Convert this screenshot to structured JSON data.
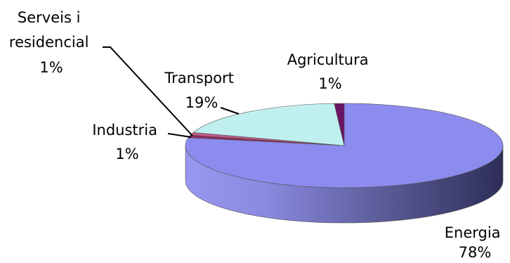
{
  "chart_data": {
    "type": "pie",
    "style": "3d",
    "title": "",
    "legend": "none",
    "slices": [
      {
        "name": "Energia",
        "value": 78,
        "label": "78%",
        "color": "#8c8cef"
      },
      {
        "name": "Serveis i residencial",
        "value": 1,
        "label": "1%",
        "color": "#8e2a5c"
      },
      {
        "name": "Industria",
        "value": 1,
        "label": "1%",
        "color": "#c85a8a"
      },
      {
        "name": "Transport",
        "value": 19,
        "label": "19%",
        "color": "#bff0ef"
      },
      {
        "name": "Agricultura",
        "value": 1,
        "label": "1%",
        "color": "#6a1466"
      }
    ],
    "side_color": "#4a4a88"
  }
}
